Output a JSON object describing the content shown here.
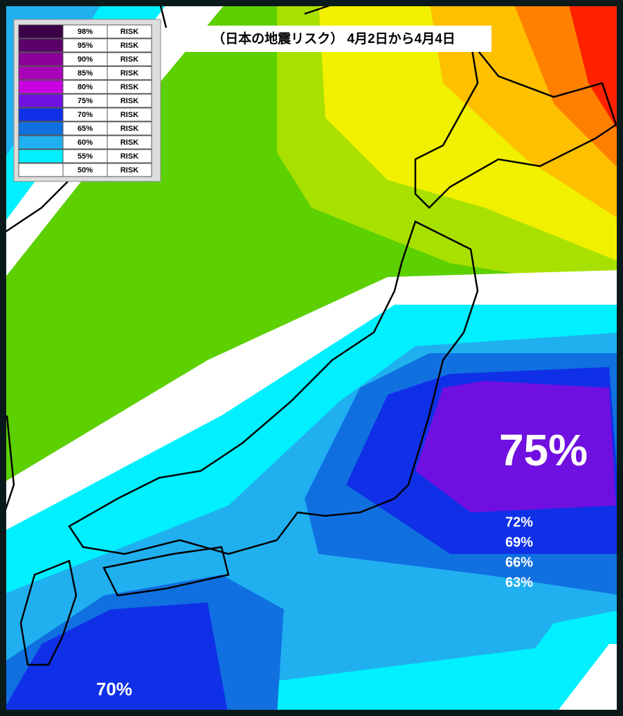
{
  "header": {
    "title": "（日本の地震リスク） 4月2日から4月4日"
  },
  "legend": {
    "items": [
      {
        "color": "#3c0048",
        "percent": "98%",
        "label": "RISK"
      },
      {
        "color": "#5a0068",
        "percent": "95%",
        "label": "RISK"
      },
      {
        "color": "#8a0098",
        "percent": "90%",
        "label": "RISK"
      },
      {
        "color": "#a800b8",
        "percent": "85%",
        "label": "RISK"
      },
      {
        "color": "#c800e0",
        "percent": "80%",
        "label": "RISK"
      },
      {
        "color": "#7010e0",
        "percent": "75%",
        "label": "RISK"
      },
      {
        "color": "#1030e8",
        "percent": "70%",
        "label": "RISK"
      },
      {
        "color": "#1070e0",
        "percent": "65%",
        "label": "RISK"
      },
      {
        "color": "#20b0f0",
        "percent": "60%",
        "label": "RISK"
      },
      {
        "color": "#00f0ff",
        "percent": "55%",
        "label": "RISK"
      },
      {
        "color": "#ffffff",
        "percent": "50%",
        "label": "RISK"
      }
    ]
  },
  "map_labels": {
    "peak_east": "75%",
    "east_levels": [
      "72%",
      "69%",
      "66%",
      "63%"
    ],
    "southwest": "70%"
  }
}
